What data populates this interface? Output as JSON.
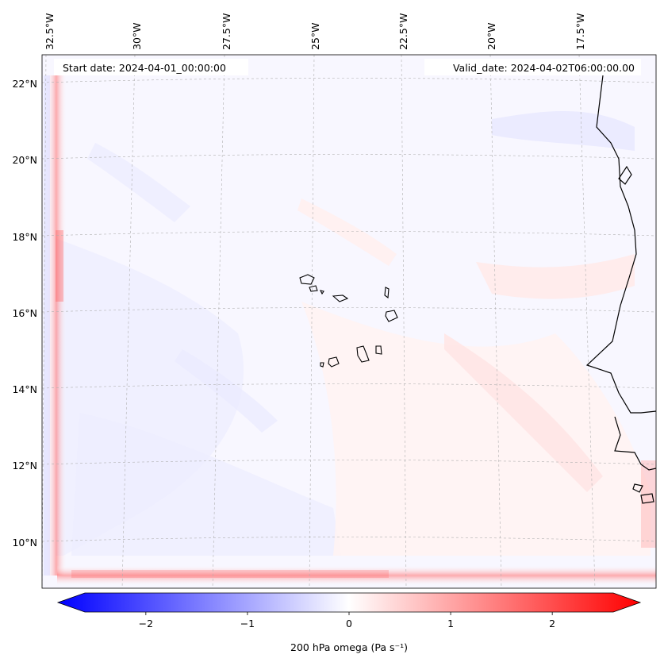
{
  "map": {
    "start_label": "Start date: 2024-04-01_00:00:00",
    "valid_label": "Valid_date: 2024-04-02T06:00:00.00",
    "lon_labels": [
      "32.5°W",
      "30°W",
      "27.5°W",
      "25°W",
      "22.5°W",
      "20°W",
      "17.5°W"
    ],
    "lat_labels": [
      "22°N",
      "20°N",
      "18°N",
      "16°N",
      "14°N",
      "12°N",
      "10°N"
    ],
    "colors": {
      "negative": "#0000ff",
      "zero": "#ffffff",
      "positive": "#ff0000",
      "coast": "#000000"
    }
  },
  "colorbar": {
    "label": "200 hPa omega (Pa s⁻¹)",
    "range": [
      -2.6,
      2.6
    ],
    "ticks": [
      -2,
      -1,
      0,
      1,
      2
    ],
    "tick_labels": [
      "−2",
      "−1",
      "0",
      "1",
      "2"
    ]
  }
}
